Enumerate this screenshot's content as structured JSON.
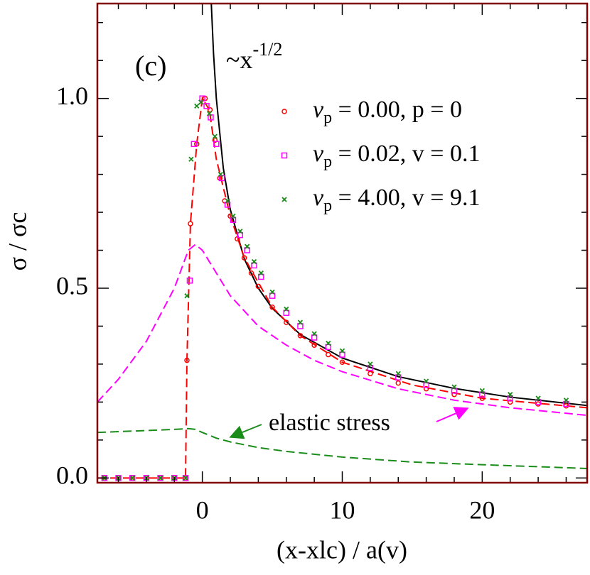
{
  "chart_data": {
    "type": "scatter",
    "panel_label": "(c)",
    "x_label": "(x-xlc) / a(v)",
    "y_label": "σ / σc",
    "xlim": [
      -7.5,
      27.5
    ],
    "ylim": [
      -0.0125,
      1.25
    ],
    "xticks": [
      0,
      10,
      20
    ],
    "yticks": [
      {
        "value": 0,
        "label": "0.0"
      },
      {
        "value": 0.5,
        "label": "0.5"
      },
      {
        "value": 1,
        "label": "1.0"
      }
    ],
    "xticks_minor": [
      -6,
      -4,
      -2,
      2,
      4,
      6,
      8,
      12,
      14,
      16,
      18,
      22,
      24,
      26
    ],
    "yticks_minor": [
      0.1,
      0.2,
      0.3,
      0.4,
      0.6,
      0.7,
      0.8,
      0.9,
      1.1,
      1.2
    ],
    "frame_color": "#800000",
    "annotations": [
      {
        "text": "~x",
        "superscript": "-1/2"
      },
      {
        "text": "elastic stress"
      }
    ],
    "series": [
      {
        "name": "vp = 0.00, p = 0",
        "color": "#ff0000",
        "marker": "circle",
        "x": [
          -7,
          -6,
          -5,
          -4,
          -3,
          -2,
          -1.2,
          -1.1,
          -0.85,
          -0.4,
          0.2,
          0.55,
          0.9,
          1.25,
          1.6,
          2,
          2.5,
          3,
          3.5,
          4,
          5,
          6,
          7,
          8,
          9,
          10,
          12,
          14,
          16,
          18,
          20,
          22,
          24,
          26
        ],
        "values": [
          0,
          0,
          0,
          0,
          0,
          0,
          0,
          0.31,
          0.67,
          0.88,
          1.0,
          0.97,
          0.89,
          0.79,
          0.73,
          0.69,
          0.63,
          0.58,
          0.54,
          0.505,
          0.45,
          0.41,
          0.375,
          0.35,
          0.325,
          0.305,
          0.275,
          0.25,
          0.235,
          0.22,
          0.21,
          0.2,
          0.195,
          0.19
        ]
      },
      {
        "name": "vp = 0.02, v = 0.1",
        "color": "#ff00ff",
        "marker": "square",
        "x": [
          -7,
          -6,
          -5,
          -4,
          -3,
          -2,
          -1.2,
          -0.9,
          -0.6,
          0,
          0.3,
          0.6,
          1,
          1.4,
          1.8,
          2.2,
          2.7,
          3.2,
          3.7,
          4.2,
          5,
          6,
          7,
          8,
          9,
          10,
          12,
          14,
          16,
          18,
          20,
          22,
          24,
          26
        ],
        "values": [
          0,
          0,
          0,
          0,
          0,
          0,
          0,
          0.52,
          0.88,
          1.0,
          0.98,
          0.95,
          0.88,
          0.79,
          0.72,
          0.68,
          0.64,
          0.6,
          0.56,
          0.53,
          0.48,
          0.435,
          0.4,
          0.37,
          0.345,
          0.325,
          0.29,
          0.265,
          0.245,
          0.23,
          0.22,
          0.21,
          0.2,
          0.195
        ]
      },
      {
        "name": "vp = 4.00, v = 9.1",
        "color": "#1a8c1a",
        "marker": "x",
        "x": [
          -7,
          -6,
          -5,
          -4,
          -3,
          -2,
          -1.2,
          -1.1,
          -0.8,
          -0.4,
          -0.1,
          0.5,
          0.9,
          1.3,
          1.8,
          2.2,
          2.7,
          3.2,
          3.7,
          4.2,
          5,
          6,
          7,
          8,
          9,
          10,
          12,
          14,
          16,
          18,
          20,
          22,
          24,
          26
        ],
        "values": [
          0,
          0,
          0,
          0,
          0,
          0,
          0,
          0.48,
          0.84,
          0.98,
          0.99,
          0.96,
          0.9,
          0.8,
          0.73,
          0.69,
          0.65,
          0.61,
          0.57,
          0.54,
          0.49,
          0.445,
          0.41,
          0.38,
          0.355,
          0.335,
          0.3,
          0.275,
          0.255,
          0.24,
          0.23,
          0.22,
          0.21,
          0.205
        ]
      },
      {
        "color": "#000000",
        "line": "solid",
        "x": [
          0.64,
          0.8,
          1,
          1.5,
          2,
          3,
          4,
          5,
          7,
          10,
          14,
          18,
          22,
          27.5
        ],
        "values": [
          1.25,
          1.118,
          1.0,
          0.816,
          0.707,
          0.577,
          0.5,
          0.447,
          0.378,
          0.316,
          0.267,
          0.236,
          0.213,
          0.191
        ]
      },
      {
        "color": "#ff0000",
        "line": "dashed",
        "x": [
          -7.5,
          -1.2,
          -1.1,
          -0.85,
          -0.4,
          0,
          0.5,
          1,
          2,
          3,
          5,
          7,
          10,
          15,
          20,
          27.5
        ],
        "values": [
          0,
          0,
          0.31,
          0.67,
          0.88,
          1.0,
          0.97,
          0.84,
          0.69,
          0.58,
          0.45,
          0.375,
          0.305,
          0.245,
          0.21,
          0.185
        ]
      },
      {
        "color": "#ff00ff",
        "line": "dashed",
        "x": [
          -7.5,
          -6,
          -4,
          -2,
          -1,
          -0.5,
          0,
          1,
          2,
          4,
          6,
          8,
          10,
          14,
          18,
          22,
          27.5
        ],
        "values": [
          0.2,
          0.26,
          0.36,
          0.5,
          0.6,
          0.615,
          0.6,
          0.54,
          0.48,
          0.4,
          0.35,
          0.31,
          0.28,
          0.235,
          0.205,
          0.185,
          0.165
        ]
      },
      {
        "color": "#1a8c1a",
        "line": "dashed",
        "x": [
          -7.5,
          -4,
          -2,
          -1,
          -0.5,
          0,
          1,
          2,
          4,
          6,
          10,
          15,
          20,
          27.5
        ],
        "values": [
          0.12,
          0.125,
          0.128,
          0.13,
          0.128,
          0.12,
          0.105,
          0.095,
          0.08,
          0.07,
          0.055,
          0.042,
          0.035,
          0.025
        ]
      }
    ]
  }
}
